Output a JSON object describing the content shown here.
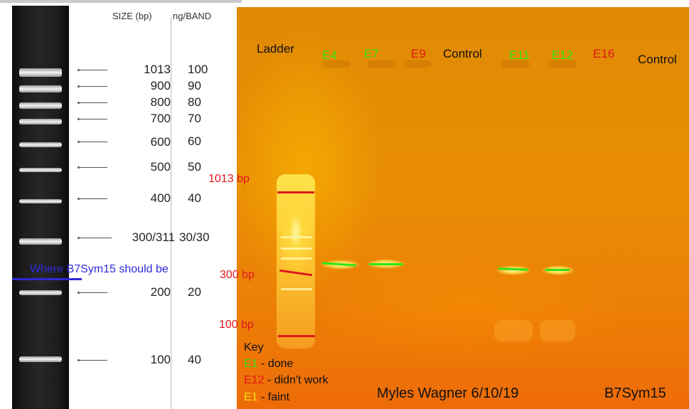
{
  "reference_ladder": {
    "size_header": "SIZE (bp)",
    "ng_header": "ng/BAND",
    "bands": [
      {
        "size": "1013",
        "ng": "100"
      },
      {
        "size": "900",
        "ng": "90"
      },
      {
        "size": "800",
        "ng": "80"
      },
      {
        "size": "700",
        "ng": "70"
      },
      {
        "size": "600",
        "ng": "60"
      },
      {
        "size": "500",
        "ng": "50"
      },
      {
        "size": "400",
        "ng": "40"
      },
      {
        "size": "300/311",
        "ng": "30/30"
      },
      {
        "size": "200",
        "ng": "20"
      },
      {
        "size": "100",
        "ng": "40"
      }
    ]
  },
  "annotation": {
    "expected_text": "Where B7Sym15 should be",
    "color": "#2d2ad9"
  },
  "gel": {
    "lanes": [
      {
        "label": "Ladder",
        "status": "ladder"
      },
      {
        "label": "E4",
        "status": "done"
      },
      {
        "label": "E7",
        "status": "done"
      },
      {
        "label": "E9",
        "status": "failed"
      },
      {
        "label": "Control",
        "status": "control"
      },
      {
        "label": "E11",
        "status": "done"
      },
      {
        "label": "E12",
        "status": "done"
      },
      {
        "label": "E16",
        "status": "failed"
      },
      {
        "label": "Control",
        "status": "control"
      }
    ],
    "markers": {
      "top": "1013 bp",
      "mid": "300 bp",
      "low": "100 bp"
    },
    "key": {
      "title": "Key",
      "items": [
        {
          "code": "E1",
          "text": " - done",
          "color": "#33e21a"
        },
        {
          "code": "E12",
          "text": " - didn't work",
          "color": "#e0161b"
        },
        {
          "code": "E1",
          "text": " -  faint",
          "color": "#f2e21a"
        }
      ]
    },
    "author": "Myles Wagner 6/10/19",
    "gel_name": "B7Sym15"
  },
  "colors": {
    "done": "#33e21a",
    "failed": "#e0161b",
    "marker_red": "#e0161b",
    "faint": "#f2e21a"
  }
}
